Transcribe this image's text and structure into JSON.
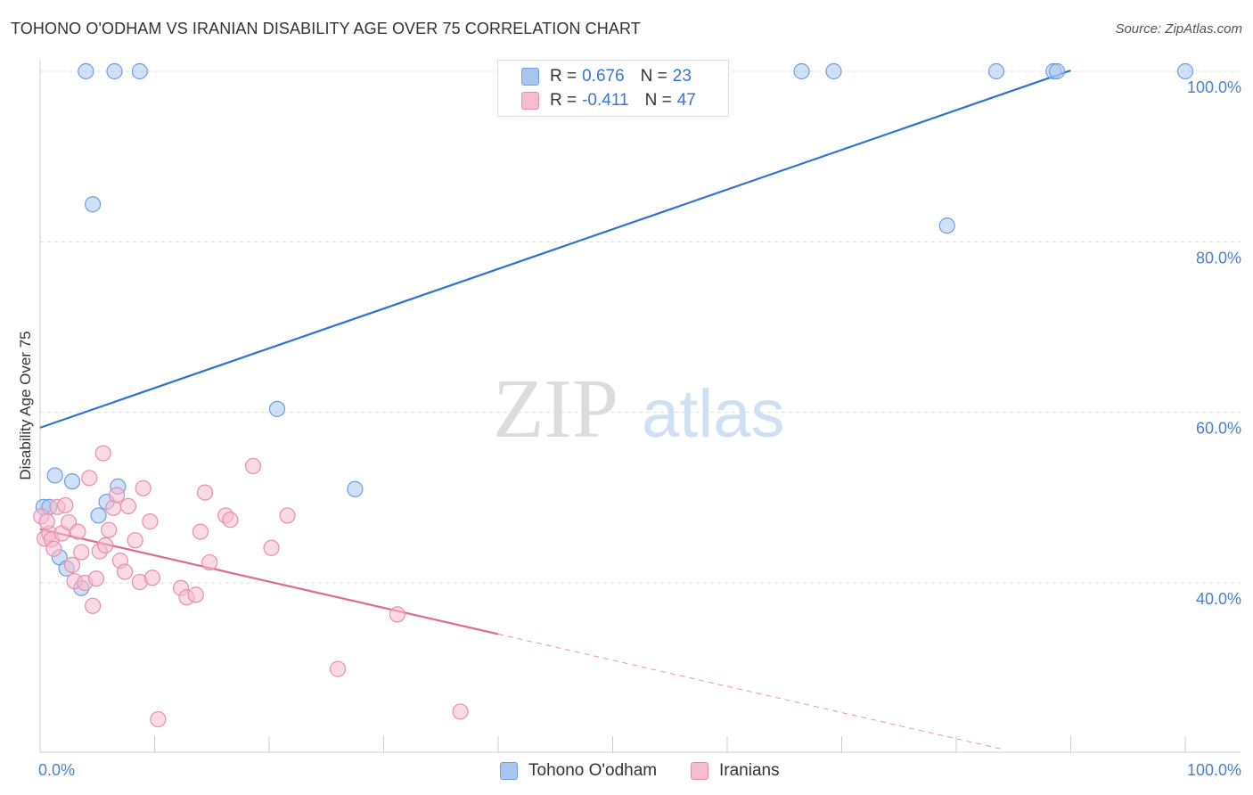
{
  "header": {
    "title": "TOHONO O'ODHAM VS IRANIAN DISABILITY AGE OVER 75 CORRELATION CHART",
    "source": "Source: ZipAtlas.com"
  },
  "watermark": {
    "zip": "ZIP",
    "atlas": "atlas"
  },
  "legend": {
    "rows": [
      {
        "r_label": "R =",
        "r_value": "0.676",
        "n_label": "N =",
        "n_value": "23",
        "color": "#a9c6f0",
        "border": "#6f9ee0"
      },
      {
        "r_label": "R =",
        "r_value": "-0.411",
        "n_label": "N =",
        "n_value": "47",
        "color": "#f7bcd0",
        "border": "#e58fae"
      }
    ]
  },
  "bottom_legend": [
    {
      "label": "Tohono O'odham",
      "color": "#a9c6f0",
      "border": "#6f9ee0"
    },
    {
      "label": "Iranians",
      "color": "#f7bcd0",
      "border": "#e58fae"
    }
  ],
  "chart_data": {
    "type": "scatter",
    "title": "TOHONO O'ODHAM VS IRANIAN DISABILITY AGE OVER 75 CORRELATION CHART",
    "xlabel": "",
    "ylabel": "Disability Age Over 75",
    "xlim": [
      0,
      100
    ],
    "ylim": [
      20,
      102
    ],
    "x_tick_labels": [
      {
        "value": 0,
        "label": "0.0%"
      },
      {
        "value": 100,
        "label": "100.0%"
      }
    ],
    "y_tick_labels": [
      {
        "value": 40,
        "label": "40.0%"
      },
      {
        "value": 60,
        "label": "60.0%"
      },
      {
        "value": 80,
        "label": "80.0%"
      },
      {
        "value": 100,
        "label": "100.0%"
      }
    ],
    "grid": true,
    "series": [
      {
        "name": "Tohono O'odham",
        "color": "#a9c6f0",
        "edge": "#6f9ee0",
        "line_color": "#2e72d2",
        "trend": {
          "x": [
            0,
            90
          ],
          "y": [
            58.2,
            100.1
          ]
        },
        "points": [
          [
            4.0,
            100
          ],
          [
            6.5,
            100
          ],
          [
            8.7,
            100
          ],
          [
            66.5,
            100
          ],
          [
            69.3,
            100
          ],
          [
            83.5,
            100
          ],
          [
            88.5,
            100
          ],
          [
            88.8,
            100
          ],
          [
            100,
            100
          ],
          [
            4.6,
            84.4
          ],
          [
            79.2,
            81.9
          ],
          [
            20.7,
            60.4
          ],
          [
            27.5,
            51.0
          ],
          [
            1.3,
            52.6
          ],
          [
            2.8,
            51.9
          ],
          [
            6.8,
            51.3
          ],
          [
            5.8,
            49.5
          ],
          [
            0.3,
            48.9
          ],
          [
            0.8,
            48.9
          ],
          [
            5.1,
            47.9
          ],
          [
            1.7,
            43.0
          ],
          [
            2.3,
            41.7
          ],
          [
            3.6,
            39.4
          ]
        ]
      },
      {
        "name": "Iranians",
        "color": "#f7bcd0",
        "edge": "#e58fae",
        "line_color": "#e06891",
        "trend": {
          "x": [
            0,
            40
          ],
          "y": [
            46.3,
            34.0
          ]
        },
        "trend_dashed": {
          "x": [
            40,
            84
          ],
          "y": [
            34.0,
            20.5
          ]
        },
        "points": [
          [
            0.1,
            47.8
          ],
          [
            0.4,
            45.2
          ],
          [
            0.8,
            45.8
          ],
          [
            1.0,
            45.1
          ],
          [
            1.2,
            44.0
          ],
          [
            1.5,
            48.9
          ],
          [
            1.9,
            45.8
          ],
          [
            2.2,
            49.1
          ],
          [
            2.5,
            47.1
          ],
          [
            2.8,
            42.1
          ],
          [
            3.0,
            40.2
          ],
          [
            3.3,
            46.0
          ],
          [
            3.6,
            43.6
          ],
          [
            3.9,
            40.0
          ],
          [
            4.3,
            52.3
          ],
          [
            4.6,
            37.3
          ],
          [
            4.9,
            40.5
          ],
          [
            5.2,
            43.7
          ],
          [
            5.5,
            55.2
          ],
          [
            5.7,
            44.4
          ],
          [
            6.0,
            46.2
          ],
          [
            6.4,
            48.8
          ],
          [
            6.7,
            50.3
          ],
          [
            7.0,
            42.6
          ],
          [
            7.4,
            41.3
          ],
          [
            7.7,
            49.0
          ],
          [
            8.3,
            45.0
          ],
          [
            8.7,
            40.1
          ],
          [
            9.0,
            51.1
          ],
          [
            9.6,
            47.2
          ],
          [
            9.8,
            40.6
          ],
          [
            10.3,
            24.0
          ],
          [
            12.3,
            39.4
          ],
          [
            12.8,
            38.3
          ],
          [
            13.6,
            38.6
          ],
          [
            14.0,
            46.0
          ],
          [
            14.4,
            50.6
          ],
          [
            14.8,
            42.4
          ],
          [
            16.2,
            47.9
          ],
          [
            16.6,
            47.4
          ],
          [
            18.6,
            53.7
          ],
          [
            20.2,
            44.1
          ],
          [
            21.6,
            47.9
          ],
          [
            26.0,
            29.9
          ],
          [
            31.2,
            36.3
          ],
          [
            36.7,
            24.9
          ],
          [
            0.6,
            47.2
          ]
        ]
      }
    ]
  }
}
